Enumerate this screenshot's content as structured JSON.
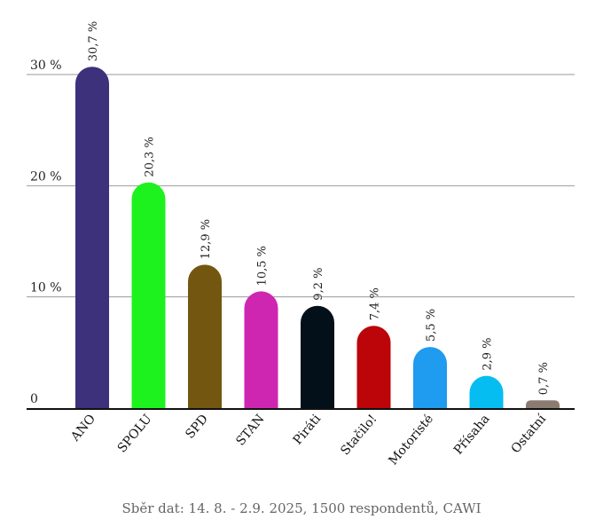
{
  "chart_data": {
    "type": "bar",
    "categories": [
      "ANO",
      "SPOLU",
      "SPD",
      "STAN",
      "Piráti",
      "Stačilo!",
      "Motoristé",
      "Přísaha",
      "Ostatní"
    ],
    "values": [
      30.7,
      20.3,
      12.9,
      10.5,
      9.2,
      7.4,
      5.5,
      2.9,
      0.7
    ],
    "data_labels": [
      "30,7 %",
      "20,3 %",
      "12,9 %",
      "10,5 %",
      "9,2 %",
      "7,4 %",
      "5,5 %",
      "2,9 %",
      "0,7 %"
    ],
    "colors": [
      "#3d317b",
      "#1ef21e",
      "#735710",
      "#cf26b2",
      "#03101a",
      "#bb0509",
      "#1f9bf0",
      "#06bdf2",
      "#8c7b70"
    ],
    "y_ticks": [
      0,
      10,
      20,
      30
    ],
    "y_tick_labels": [
      "0",
      "10 %",
      "20 %",
      "30 %"
    ],
    "ylim": [
      0,
      30
    ],
    "grid": true,
    "xlabel": "",
    "ylabel": ""
  },
  "footnote": "Sběr dat: 14. 8. - 2.9. 2025, 1500 respondentů, CAWI"
}
